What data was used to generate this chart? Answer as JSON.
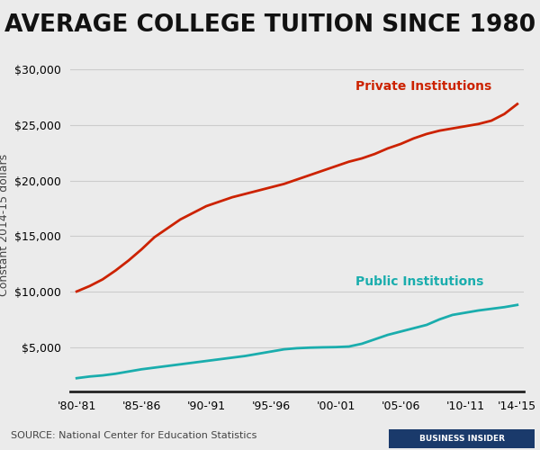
{
  "title": "AVERAGE COLLEGE TUITION SINCE 1980",
  "ylabel": "Constant 2014-15 dollars",
  "source": "SOURCE: National Center for Education Statistics",
  "x_labels": [
    "'80-'81",
    "'85-'86",
    "'90-'91",
    "'95-'96",
    "'00-'01",
    "'05-'06",
    "'10-'11",
    "'14-'15"
  ],
  "x_tick_positions": [
    0,
    5,
    10,
    15,
    20,
    25,
    30,
    34
  ],
  "private_values": [
    10010,
    10500,
    11100,
    11900,
    12800,
    13800,
    14900,
    15700,
    16500,
    17100,
    17700,
    18100,
    18500,
    18800,
    19100,
    19400,
    19700,
    20100,
    20500,
    20900,
    21300,
    21700,
    22000,
    22400,
    22900,
    23300,
    23800,
    24200,
    24500,
    24700,
    24900,
    25100,
    25400,
    26000,
    26900
  ],
  "public_values": [
    2200,
    2350,
    2450,
    2600,
    2800,
    3000,
    3150,
    3300,
    3450,
    3600,
    3750,
    3900,
    4050,
    4200,
    4400,
    4600,
    4800,
    4900,
    4950,
    4980,
    5000,
    5050,
    5300,
    5700,
    6100,
    6400,
    6700,
    7000,
    7500,
    7900,
    8100,
    8300,
    8450,
    8600,
    8800
  ],
  "private_color": "#cc2200",
  "public_color": "#1aadad",
  "background_color": "#ebebeb",
  "plot_background_color": "#ebebeb",
  "grid_color": "#cccccc",
  "ylim_min": 1000,
  "ylim_max": 31000,
  "yticks": [
    5000,
    10000,
    15000,
    20000,
    25000,
    30000
  ],
  "private_label": "Private Institutions",
  "public_label": "Public Institutions",
  "title_fontsize": 19,
  "label_fontsize": 9,
  "annotation_fontsize": 10,
  "source_fontsize": 8
}
